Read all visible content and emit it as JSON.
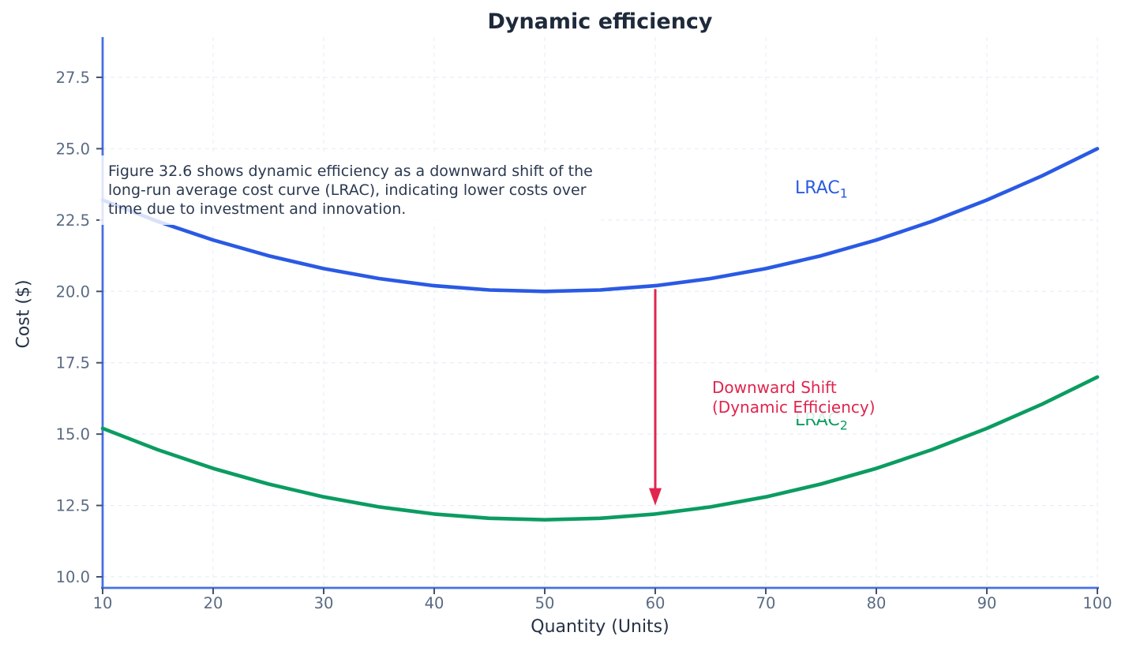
{
  "title": "Dynamic efficiency",
  "axes": {
    "x_label": "Quantity (Units)",
    "y_label": "Cost ($)"
  },
  "annotations": {
    "note_lines": [
      "Figure 32.6 shows dynamic efficiency as a downward shift of the",
      "long-run average cost curve (LRAC), indicating lower costs over",
      "time due to investment and innovation."
    ],
    "lrac1": {
      "text": "LRAC",
      "sub": "1",
      "color": "#2a5ae4"
    },
    "lrac2": {
      "text": "LRAC",
      "sub": "2",
      "color": "#0b9c61"
    },
    "shift_lines": [
      "Downward Shift",
      "(Dynamic Efficiency)"
    ],
    "shift_color": "#e0254e"
  },
  "colors": {
    "spine": "#4770e4",
    "grid": "#e8eef6",
    "tick": "#44526b",
    "tick_label": "#5a6a83",
    "lrac1": "#2a5ae4",
    "lrac2": "#0b9c61",
    "arrow": "#e0254e"
  },
  "chart_data": {
    "type": "line",
    "title": "Dynamic efficiency",
    "xlabel": "Quantity (Units)",
    "ylabel": "Cost ($)",
    "xlim": [
      10,
      100
    ],
    "ylim": [
      9.6,
      28.9
    ],
    "grid": true,
    "grid_style": "dashed",
    "legend": "none",
    "x_ticks": [
      10,
      20,
      30,
      40,
      50,
      60,
      70,
      80,
      90,
      100
    ],
    "y_ticks": [
      10.0,
      12.5,
      15.0,
      17.5,
      20.0,
      22.5,
      25.0,
      27.5
    ],
    "y_tick_labels": [
      "10.0",
      "12.5",
      "15.0",
      "17.5",
      "20.0",
      "22.5",
      "25.0",
      "27.5"
    ],
    "x": [
      10,
      15,
      20,
      25,
      30,
      35,
      40,
      45,
      50,
      55,
      60,
      65,
      70,
      75,
      80,
      85,
      90,
      95,
      100
    ],
    "series": [
      {
        "name": "LRAC1",
        "color": "#2a5ae4",
        "values": [
          23.2,
          22.45,
          21.8,
          21.25,
          20.8,
          20.45,
          20.2,
          20.05,
          20.0,
          20.05,
          20.2,
          20.45,
          20.8,
          21.25,
          21.8,
          22.45,
          23.2,
          24.05,
          25.0
        ]
      },
      {
        "name": "LRAC2",
        "color": "#0b9c61",
        "values": [
          15.2,
          14.45,
          13.8,
          13.25,
          12.8,
          12.45,
          12.2,
          12.05,
          12.0,
          12.05,
          12.2,
          12.45,
          12.8,
          13.25,
          13.8,
          14.45,
          15.2,
          16.05,
          17.0
        ]
      }
    ],
    "arrow": {
      "x": 60,
      "y_from": 20.08,
      "y_to": 12.5,
      "color": "#e0254e",
      "label": "Downward Shift (Dynamic Efficiency)"
    }
  }
}
